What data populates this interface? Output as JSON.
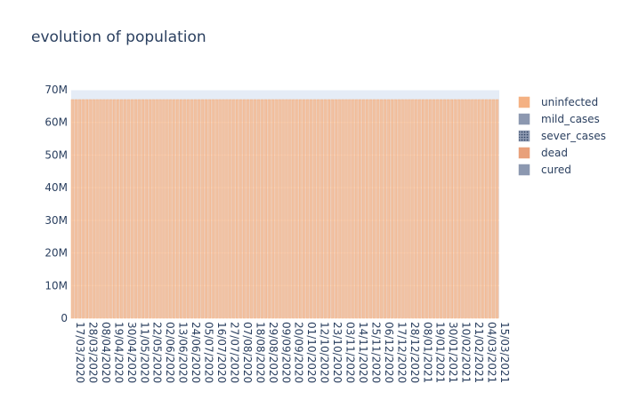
{
  "chart_data": {
    "type": "bar",
    "barmode": "stack",
    "title": "evolution of population",
    "xlabel": "",
    "ylabel": "",
    "ylim": [
      0,
      70000000
    ],
    "yticks": [
      "0",
      "10M",
      "20M",
      "30M",
      "40M",
      "50M",
      "60M",
      "70M"
    ],
    "yticks_values": [
      0,
      10000000,
      20000000,
      30000000,
      40000000,
      50000000,
      60000000,
      70000000
    ],
    "x_range": [
      "17/03/2020",
      "15/03/2021"
    ],
    "bar_interval_days": 3,
    "x_tick_labels": [
      "17/03/2020",
      "28/03/2020",
      "08/04/2020",
      "19/04/2020",
      "30/04/2020",
      "11/05/2020",
      "22/05/2020",
      "02/06/2020",
      "13/06/2020",
      "24/06/2020",
      "05/07/2020",
      "16/07/2020",
      "27/07/2020",
      "07/08/2020",
      "18/08/2020",
      "29/08/2020",
      "09/09/2020",
      "20/09/2020",
      "01/10/2020",
      "12/10/2020",
      "23/10/2020",
      "03/11/2020",
      "14/11/2020",
      "25/11/2020",
      "06/12/2020",
      "17/12/2020",
      "28/12/2020",
      "08/01/2021",
      "19/01/2021",
      "30/01/2021",
      "10/02/2021",
      "21/02/2021",
      "04/03/2021",
      "15/03/2021"
    ],
    "series": [
      {
        "name": "uninfected",
        "value": 67000000,
        "color": "#f4b183",
        "pattern": "solid"
      },
      {
        "name": "mild_cases",
        "value": 0,
        "color": "#8c98b0",
        "pattern": "solid"
      },
      {
        "name": "sever_cases",
        "value": 0,
        "color": "#8c98b0",
        "pattern": "dots"
      },
      {
        "name": "dead",
        "value": 0,
        "color": "#e8a07a",
        "pattern": "solid"
      },
      {
        "name": "cured",
        "value": 0,
        "color": "#8c98b0",
        "pattern": "solid"
      }
    ],
    "grid": true,
    "legend_position": "right",
    "plot_background": "#e5ecf6"
  }
}
